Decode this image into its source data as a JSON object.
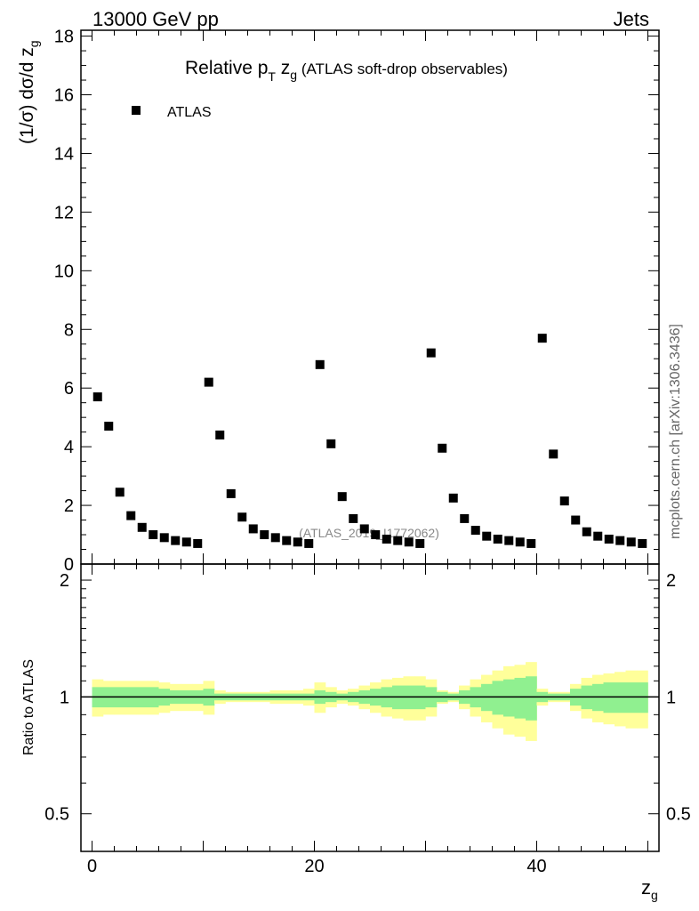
{
  "header": {
    "left": "13000 GeV pp",
    "right": "Jets"
  },
  "side_label": "mcplots.cern.ch [arXiv:1306.3436]",
  "chart_data": {
    "type": "scatter",
    "title": "Relative p_T z_g (ATLAS soft-drop observables)",
    "title_parts": {
      "main": "Relative p",
      "sub_T": "T",
      "mid": " z",
      "sub_g": "g",
      "paren": " (ATLAS soft-drop observables)"
    },
    "watermark": "(ATLAS_2019_I1772062)",
    "xlabel": "z",
    "xlabel_sub": "g",
    "ylabel": "(1/σ) dσ/d z",
    "ylabel_sub": "g",
    "xlim": [
      -1,
      51
    ],
    "ylim": [
      0,
      18.2
    ],
    "x_ticks": [
      "0",
      "20",
      "40"
    ],
    "y_ticks": [
      "0",
      "2",
      "4",
      "6",
      "8",
      "10",
      "12",
      "14",
      "16",
      "18"
    ],
    "legend": {
      "position": "top-left",
      "entries": [
        "ATLAS"
      ]
    },
    "series": [
      {
        "name": "ATLAS",
        "color": "#000000",
        "x": [
          0.5,
          1.5,
          2.5,
          3.5,
          4.5,
          5.5,
          6.5,
          7.5,
          8.5,
          9.5,
          10.5,
          11.5,
          12.5,
          13.5,
          14.5,
          15.5,
          16.5,
          17.5,
          18.5,
          19.5,
          20.5,
          21.5,
          22.5,
          23.5,
          24.5,
          25.5,
          26.5,
          27.5,
          28.5,
          29.5,
          30.5,
          31.5,
          32.5,
          33.5,
          34.5,
          35.5,
          36.5,
          37.5,
          38.5,
          39.5,
          40.5,
          41.5,
          42.5,
          43.5,
          44.5,
          45.5,
          46.5,
          47.5,
          48.5,
          49.5
        ],
        "y": [
          5.7,
          4.7,
          2.45,
          1.65,
          1.25,
          1.0,
          0.9,
          0.8,
          0.75,
          0.7,
          6.2,
          4.4,
          2.4,
          1.6,
          1.2,
          1.0,
          0.9,
          0.8,
          0.75,
          0.7,
          6.8,
          4.1,
          2.3,
          1.55,
          1.2,
          1.0,
          0.85,
          0.8,
          0.75,
          0.7,
          7.2,
          3.95,
          2.25,
          1.55,
          1.15,
          0.95,
          0.85,
          0.8,
          0.75,
          0.7,
          7.7,
          3.75,
          2.15,
          1.5,
          1.1,
          0.95,
          0.85,
          0.8,
          0.75,
          0.7
        ]
      }
    ],
    "ratio": {
      "ylabel": "Ratio to ATLAS",
      "ylim": [
        0.4,
        2.2
      ],
      "y_ticks": [
        "0.5",
        "1",
        "2"
      ],
      "reference": 1,
      "colors": {
        "inner": "#90f090",
        "outer": "#ffff9a",
        "line": "#000000"
      },
      "inner_err": [
        0.06,
        0.06,
        0.06,
        0.06,
        0.06,
        0.06,
        0.05,
        0.04,
        0.04,
        0.04,
        0.05,
        0.02,
        0.02,
        0.02,
        0.02,
        0.02,
        0.02,
        0.02,
        0.02,
        0.02,
        0.04,
        0.03,
        0.02,
        0.03,
        0.04,
        0.05,
        0.06,
        0.07,
        0.07,
        0.07,
        0.06,
        0.03,
        0.02,
        0.04,
        0.06,
        0.08,
        0.1,
        0.11,
        0.12,
        0.13,
        0.03,
        0.02,
        0.02,
        0.05,
        0.07,
        0.08,
        0.09,
        0.09,
        0.09,
        0.09
      ],
      "outer_err": [
        0.11,
        0.1,
        0.1,
        0.1,
        0.1,
        0.1,
        0.09,
        0.08,
        0.08,
        0.08,
        0.1,
        0.04,
        0.03,
        0.03,
        0.03,
        0.03,
        0.04,
        0.04,
        0.04,
        0.05,
        0.09,
        0.06,
        0.04,
        0.05,
        0.07,
        0.09,
        0.11,
        0.12,
        0.13,
        0.13,
        0.11,
        0.04,
        0.03,
        0.07,
        0.11,
        0.14,
        0.17,
        0.2,
        0.21,
        0.23,
        0.05,
        0.03,
        0.03,
        0.08,
        0.12,
        0.14,
        0.15,
        0.16,
        0.17,
        0.17
      ]
    }
  }
}
